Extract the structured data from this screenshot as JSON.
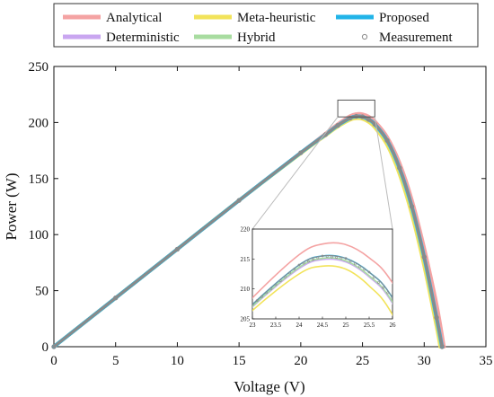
{
  "chart_data": {
    "type": "line",
    "xlabel": "Voltage (V)",
    "ylabel": "Power (W)",
    "xlim": [
      0,
      35
    ],
    "ylim": [
      0,
      250
    ],
    "xticks": [
      "0",
      "5",
      "10",
      "15",
      "20",
      "25",
      "30",
      "35"
    ],
    "yticks": [
      "0",
      "50",
      "100",
      "150",
      "200",
      "250"
    ],
    "grid": false,
    "legend_position": "top",
    "series": [
      {
        "name": "Analytical",
        "color": "#f4a3a3",
        "x": [
          0,
          5,
          10,
          15,
          20,
          22,
          23,
          24,
          24.5,
          25,
          25.5,
          26,
          27,
          28,
          29,
          30,
          31,
          31.6
        ],
        "y": [
          0,
          43.5,
          87,
          130.5,
          173,
          190,
          198.5,
          205.7,
          207.5,
          207.4,
          205.2,
          201,
          187,
          164,
          131,
          88,
          38,
          0
        ]
      },
      {
        "name": "Deterministic",
        "color": "#c9a6f0",
        "x": [
          0,
          5,
          10,
          15,
          20,
          22,
          23,
          24,
          24.5,
          25,
          25.5,
          26,
          27,
          28,
          29,
          30,
          31,
          31.4
        ],
        "y": [
          0,
          43.5,
          87,
          130.5,
          173,
          189,
          197,
          203.4,
          204.9,
          204.5,
          202,
          197.6,
          183,
          158,
          123,
          78,
          24,
          0
        ]
      },
      {
        "name": "Meta-heuristic",
        "color": "#f2e35a",
        "x": [
          0,
          5,
          10,
          15,
          20,
          22,
          23,
          24,
          24.5,
          25,
          25.5,
          26,
          27,
          28,
          29,
          30,
          31,
          31.3
        ],
        "y": [
          0,
          43.5,
          87,
          130.5,
          172.5,
          188.5,
          196.4,
          202.5,
          203.8,
          203.3,
          200.5,
          195.7,
          180,
          154,
          118,
          72,
          18,
          0
        ]
      },
      {
        "name": "Hybrid",
        "color": "#a8dca0",
        "x": [
          0,
          5,
          10,
          15,
          20,
          22,
          23,
          24,
          24.5,
          25,
          25.5,
          26,
          27,
          28,
          29,
          30,
          31,
          31.4
        ],
        "y": [
          0,
          43.5,
          87,
          130.5,
          173,
          189,
          197.1,
          203.6,
          205.1,
          204.7,
          202.2,
          197.8,
          183,
          158,
          123,
          78,
          24,
          0
        ]
      },
      {
        "name": "Proposed",
        "color": "#22b4e8",
        "x": [
          0,
          5,
          10,
          15,
          20,
          22,
          23,
          24,
          24.5,
          25,
          25.5,
          26,
          27,
          28,
          29,
          30,
          31,
          31.45
        ],
        "y": [
          0,
          43.5,
          87,
          130.5,
          173,
          189.2,
          197.4,
          204,
          205.5,
          205.1,
          202.8,
          198.5,
          184,
          159.5,
          125,
          80,
          26,
          0
        ]
      },
      {
        "name": "Measurement",
        "color": "#8a8a8a",
        "marker": "circle",
        "x": [
          0,
          5,
          10,
          15,
          20,
          22,
          23,
          24,
          24.5,
          25,
          25.5,
          26,
          27,
          28,
          29,
          30,
          31,
          31.45
        ],
        "y": [
          0,
          43.5,
          87,
          130.5,
          173,
          189.2,
          197.4,
          204,
          205.5,
          205.1,
          202.8,
          198.5,
          184,
          159.5,
          125,
          80,
          26,
          0
        ]
      }
    ],
    "inset": {
      "xlim": [
        23,
        26
      ],
      "ylim": [
        205,
        220
      ],
      "xticks": [
        "23",
        "23.5",
        "24",
        "24.5",
        "25",
        "25.5",
        "26"
      ],
      "yticks": [
        "205",
        "210",
        "215",
        "220"
      ],
      "zoom_box": {
        "x": [
          23,
          26
        ],
        "y": [
          205,
          220
        ]
      }
    }
  }
}
